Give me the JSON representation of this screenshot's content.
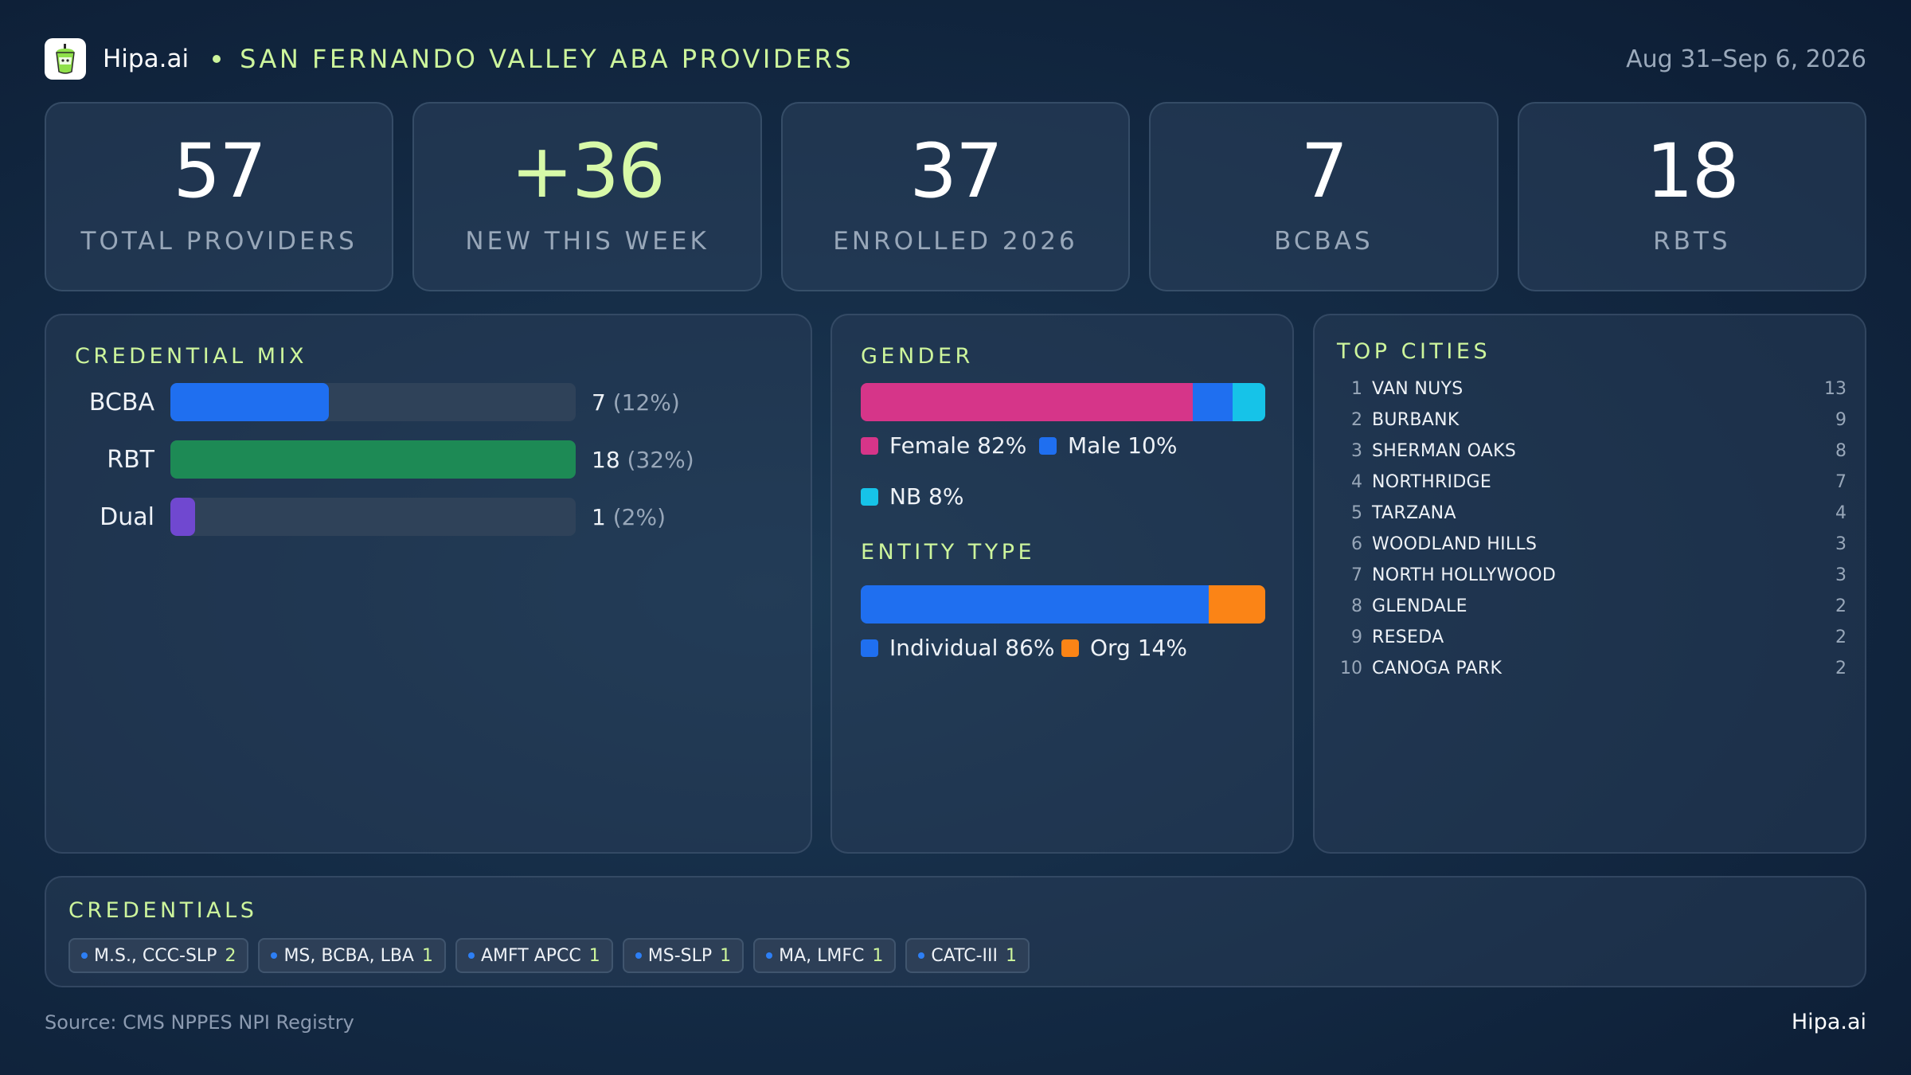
{
  "header": {
    "brand": "Hipa.ai",
    "title": "SAN FERNANDO VALLEY ABA PROVIDERS",
    "date_range": "Aug 31–Sep 6, 2026"
  },
  "stats": [
    {
      "value": "57",
      "label": "TOTAL PROVIDERS"
    },
    {
      "value": "+36",
      "label": "NEW THIS WEEK"
    },
    {
      "value": "37",
      "label": "ENROLLED 2026"
    },
    {
      "value": "7",
      "label": "BCBAS"
    },
    {
      "value": "18",
      "label": "RBTS"
    }
  ],
  "credential_mix": {
    "title": "CREDENTIAL MIX",
    "rows": [
      {
        "name": "BCBA",
        "count": "7",
        "pct": "(12%)",
        "fill": 0.39,
        "color": "#1f6ff0"
      },
      {
        "name": "RBT",
        "count": "18",
        "pct": "(32%)",
        "fill": 1.0,
        "color": "#1d8a55"
      },
      {
        "name": "Dual",
        "count": "1",
        "pct": "(2%)",
        "fill": 0.06,
        "color": "#7048d0"
      }
    ]
  },
  "gender": {
    "title": "GENDER",
    "segments": [
      {
        "label": "Female 82%",
        "value": 82,
        "color": "#d63589"
      },
      {
        "label": "Male 10%",
        "value": 10,
        "color": "#1f6ff0"
      },
      {
        "label": "NB 8%",
        "value": 8,
        "color": "#16c3e8"
      }
    ]
  },
  "entity_type": {
    "title": "ENTITY TYPE",
    "segments": [
      {
        "label": "Individual 86%",
        "value": 86,
        "color": "#1f6ff0"
      },
      {
        "label": "Org 14%",
        "value": 14,
        "color": "#fb8416"
      }
    ]
  },
  "top_cities": {
    "title": "TOP CITIES",
    "items": [
      {
        "rank": "1",
        "name": "VAN NUYS",
        "count": "13"
      },
      {
        "rank": "2",
        "name": "BURBANK",
        "count": "9"
      },
      {
        "rank": "3",
        "name": "SHERMAN OAKS",
        "count": "8"
      },
      {
        "rank": "4",
        "name": "NORTHRIDGE",
        "count": "7"
      },
      {
        "rank": "5",
        "name": "TARZANA",
        "count": "4"
      },
      {
        "rank": "6",
        "name": "WOODLAND HILLS",
        "count": "3"
      },
      {
        "rank": "7",
        "name": "NORTH HOLLYWOOD",
        "count": "3"
      },
      {
        "rank": "8",
        "name": "GLENDALE",
        "count": "2"
      },
      {
        "rank": "9",
        "name": "RESEDA",
        "count": "2"
      },
      {
        "rank": "10",
        "name": "CANOGA PARK",
        "count": "2"
      }
    ]
  },
  "credentials": {
    "title": "CREDENTIALS",
    "tags": [
      {
        "name": "M.S., CCC-SLP",
        "count": "2"
      },
      {
        "name": "MS, BCBA, LBA",
        "count": "1"
      },
      {
        "name": "AMFT APCC",
        "count": "1"
      },
      {
        "name": "MS-SLP",
        "count": "1"
      },
      {
        "name": "MA, LMFC",
        "count": "1"
      },
      {
        "name": "CATC-III",
        "count": "1"
      }
    ]
  },
  "footer": {
    "source": "Source: CMS NPPES NPI Registry",
    "brand": "Hipa.ai"
  },
  "colors": {
    "accent": "#cdf59c",
    "background": "#142b45"
  },
  "icons": {
    "logo": "drink-cup-icon"
  }
}
